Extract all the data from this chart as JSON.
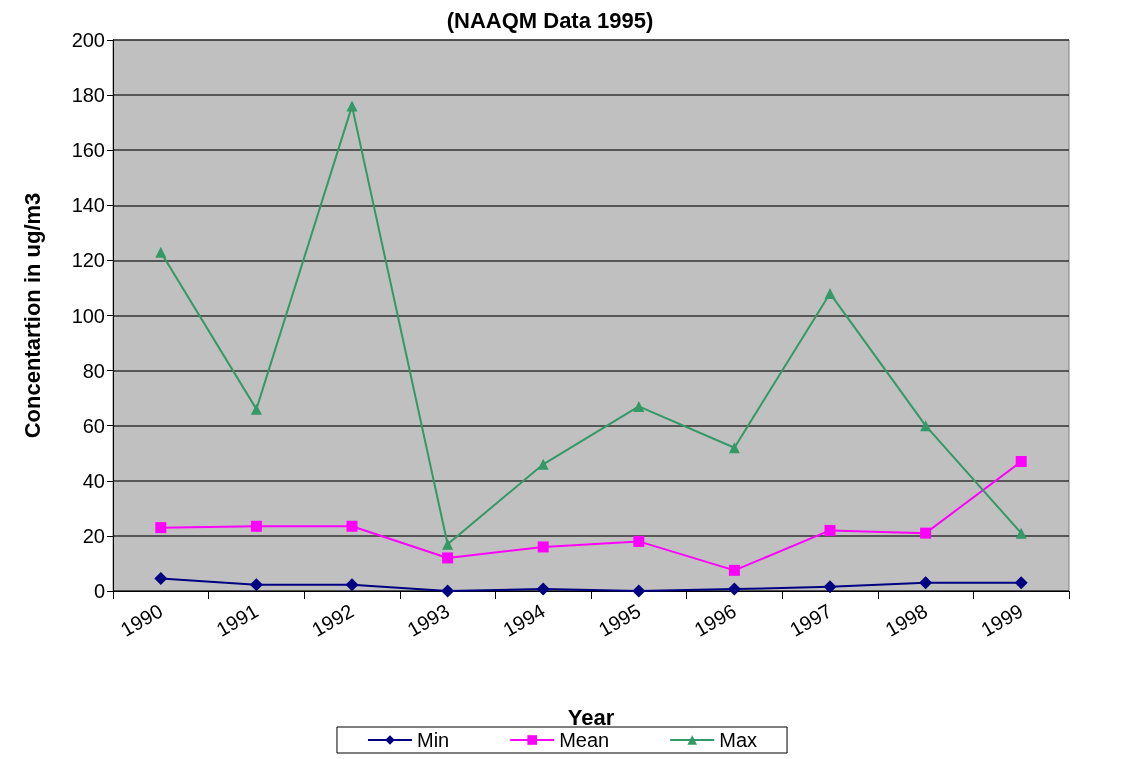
{
  "chart_data": {
    "type": "line",
    "title": "(NAAQM Data 1995)",
    "xlabel": "Year",
    "ylabel": "Concentartion in ug/m3",
    "categories": [
      "1990",
      "1991",
      "1992",
      "1993",
      "1994",
      "1995",
      "1996",
      "1997",
      "1998",
      "1999"
    ],
    "series": [
      {
        "name": "Min",
        "color": "#000080",
        "marker": "diamond",
        "values": [
          4.5,
          2.3,
          2.3,
          0,
          0.7,
          0,
          0.7,
          1.5,
          3,
          3
        ]
      },
      {
        "name": "Mean",
        "color": "#ff00ff",
        "marker": "square",
        "values": [
          23,
          23.5,
          23.5,
          12,
          16,
          18,
          7.5,
          22,
          21,
          47
        ]
      },
      {
        "name": "Max",
        "color": "#339966",
        "marker": "triangle",
        "values": [
          123,
          66,
          176,
          17,
          46,
          67,
          52,
          108,
          60,
          21
        ]
      }
    ],
    "ylim": [
      0,
      200
    ],
    "yticks": [
      0,
      20,
      40,
      60,
      80,
      100,
      120,
      140,
      160,
      180,
      200
    ],
    "grid": "y",
    "legend": "bottom",
    "line_style": "solid"
  }
}
